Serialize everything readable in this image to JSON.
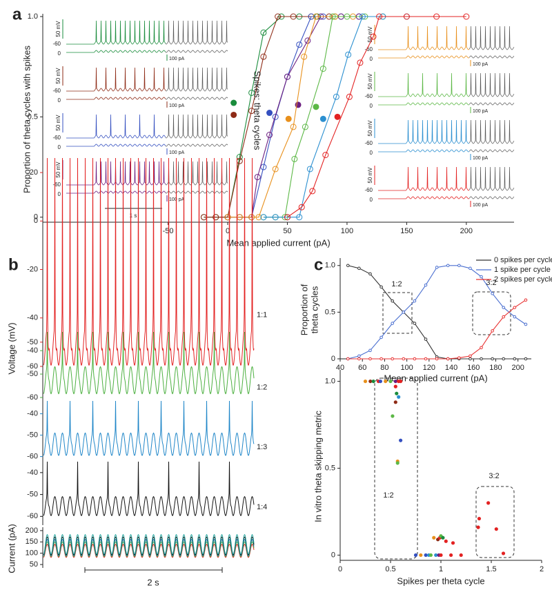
{
  "chart_data": [
    {
      "panel": "a",
      "type": "line",
      "xlabel": "Mean applied current (pA)",
      "ylabel": "Proportion of theta cycles with spikes",
      "xlim": [
        -155,
        240
      ],
      "ylim": [
        -0.025,
        1.0
      ],
      "xticks": [
        -50,
        0,
        50,
        100,
        150,
        200
      ],
      "yticks": [
        0,
        0.5,
        {
          "value": 1,
          "label": "1.0"
        }
      ],
      "series": [
        {
          "color": "#1a8c3c",
          "x": [
            -20,
            -10,
            0,
            10,
            20,
            30,
            45,
            60,
            75,
            90
          ],
          "values": [
            0,
            0,
            0,
            0.3,
            0.62,
            0.92,
            1,
            1,
            1,
            1
          ],
          "mid_x": 5,
          "mid_y": 0.57
        },
        {
          "color": "#8e2b16",
          "x": [
            -20,
            -10,
            0,
            10,
            20,
            30,
            42,
            55,
            70,
            85
          ],
          "values": [
            0,
            0,
            0,
            0.28,
            0.53,
            0.8,
            1,
            1,
            1,
            1
          ],
          "mid_x": 5,
          "mid_y": 0.51
        },
        {
          "color": "#3550c0",
          "x": [
            10,
            20,
            30,
            40,
            50,
            60,
            70,
            80,
            95,
            110
          ],
          "values": [
            0,
            0,
            0.25,
            0.5,
            0.7,
            0.86,
            1,
            1,
            1,
            1
          ],
          "mid_x": 35,
          "mid_y": 0.52
        },
        {
          "color": "#6c1f80",
          "x": [
            0,
            10,
            20,
            25,
            35,
            50,
            67,
            78,
            95,
            110
          ],
          "values": [
            0,
            0,
            0,
            0.2,
            0.41,
            0.7,
            0.88,
            1,
            1,
            1
          ],
          "mid_x": 59,
          "mid_y": 0.56
        },
        {
          "color": "#e8901c",
          "x": [
            0,
            10,
            20,
            26,
            40,
            55,
            64,
            74,
            90,
            105
          ],
          "values": [
            0,
            0,
            0,
            0,
            0.24,
            0.45,
            0.8,
            1,
            1,
            1
          ],
          "mid_x": 51,
          "mid_y": 0.49
        },
        {
          "color": "#5cb846",
          "x": [
            30,
            40,
            48,
            56,
            65,
            80,
            88,
            100,
            115,
            130
          ],
          "values": [
            0,
            0,
            0,
            0.29,
            0.45,
            0.74,
            1,
            1,
            1,
            1
          ],
          "mid_x": 74,
          "mid_y": 0.55
        },
        {
          "color": "#2b8fd0",
          "x": [
            30,
            40,
            50,
            60,
            69,
            91,
            101,
            113,
            130,
            150
          ],
          "values": [
            0,
            0,
            0,
            0,
            0.24,
            0.6,
            0.81,
            1,
            1,
            1
          ],
          "mid_x": 80,
          "mid_y": 0.49
        },
        {
          "color": "#e32222",
          "x": [
            50,
            62,
            71,
            82,
            102,
            111,
            122,
            127,
            150,
            175,
            200
          ],
          "values": [
            0,
            0.05,
            0.13,
            0.31,
            0.6,
            0.77,
            0.9,
            1,
            1,
            1,
            1
          ],
          "mid_x": 92,
          "mid_y": 0.5
        }
      ],
      "insets": [
        {
          "color": "#1a8c3c",
          "amplitude": "50 mV",
          "rest": "-60",
          "zero": "0",
          "current": "100 pA"
        },
        {
          "color": "#8e2b16",
          "amplitude": "50 mV",
          "rest": "-60",
          "zero": "0",
          "current": "100 pA"
        },
        {
          "color": "#3550c0",
          "amplitude": "50 mV",
          "rest": "-60",
          "zero": "0",
          "current": "100 pA"
        },
        {
          "color": "#6c1f80",
          "amplitude": "50 mV",
          "rest": "-60",
          "zero": "0",
          "current": "100 pA"
        },
        {
          "color": "#e8901c",
          "amplitude": "50 mV",
          "rest": "-60",
          "zero": "0",
          "current": "100 pA"
        },
        {
          "color": "#5cb846",
          "amplitude": "50 mV",
          "rest": "-60",
          "zero": "0",
          "current": "100 pA"
        },
        {
          "color": "#2b8fd0",
          "amplitude": "50 mV",
          "rest": "-60",
          "zero": "0",
          "current": "100 pA"
        },
        {
          "color": "#e32222",
          "amplitude": "50 mV",
          "rest": "-60",
          "zero": "0",
          "current": "100 pA"
        }
      ],
      "time_scale": "1 s"
    },
    {
      "panel": "b",
      "type": "traces",
      "ylabel": "Voltage (mV)",
      "ratio_title": "Spikes: theta cycles",
      "time_scale": "2 s",
      "traces": [
        {
          "ratio": "1:1",
          "color": "#e32222",
          "ylim": [
            -64,
            26
          ],
          "yticks": [
            20,
            0,
            -20,
            -40,
            -50,
            -60
          ]
        },
        {
          "ratio": "1:2",
          "color": "#4cb040",
          "ylim": [
            -65,
            -32
          ],
          "yticks": [
            -40,
            -50,
            -60
          ]
        },
        {
          "ratio": "1:3",
          "color": "#1f86c8",
          "ylim": [
            -64,
            -34
          ],
          "yticks": [
            -40,
            -50,
            -60
          ]
        },
        {
          "ratio": "1:4",
          "color": "#111111",
          "ylim": [
            -64,
            -35
          ],
          "yticks": [
            -40,
            -50,
            -60
          ]
        }
      ],
      "current": {
        "ylabel": "Current (pA)",
        "ylim": [
          35,
          215
        ],
        "yticks": [
          200,
          150,
          100,
          50
        ],
        "colors": [
          "#e32222",
          "#4cb040",
          "#1f86c8",
          "#111111",
          "#2aa7a0"
        ]
      }
    },
    {
      "panel": "c",
      "type": "line",
      "xlabel": "Mean applied current (pA)",
      "ylabel": [
        "Proportion of",
        "theta cycles"
      ],
      "xlim": [
        40,
        212
      ],
      "ylim": [
        0,
        1.05
      ],
      "xticks": [
        40,
        60,
        80,
        100,
        120,
        140,
        160,
        180,
        200
      ],
      "yticks": [
        0,
        0.5,
        {
          "value": 1,
          "label": "1.0"
        }
      ],
      "x": [
        47,
        57,
        67,
        77,
        87,
        97,
        107,
        117,
        127,
        137,
        147,
        157,
        167,
        177,
        187,
        197,
        207
      ],
      "series": [
        {
          "name": "0 spikes per cycle",
          "color": "#333333",
          "values": [
            1,
            0.97,
            0.91,
            0.77,
            0.62,
            0.5,
            0.38,
            0.21,
            0.02,
            0,
            0,
            0,
            0,
            0,
            0,
            0,
            0
          ]
        },
        {
          "name": "1 spike per cycle",
          "color": "#4a6fd0",
          "values": [
            0,
            0.03,
            0.09,
            0.23,
            0.38,
            0.5,
            0.62,
            0.79,
            0.98,
            1,
            1,
            0.97,
            0.88,
            0.7,
            0.55,
            0.45,
            0.37
          ]
        },
        {
          "name": "2 spikes per cycle",
          "color": "#e83030",
          "values": [
            0,
            0,
            0,
            0,
            0,
            0,
            0,
            0,
            0,
            0,
            0.01,
            0.03,
            0.12,
            0.3,
            0.45,
            0.55,
            0.63
          ]
        }
      ],
      "annotations": [
        "1:2",
        "3:2"
      ]
    },
    {
      "type": "scatter",
      "xlabel": "Spikes per theta cycle",
      "ylabel": "In vitro theta skipping metric",
      "xlim": [
        0,
        2
      ],
      "ylim": [
        -0.03,
        1.05
      ],
      "xticks": [
        0,
        0.5,
        1,
        1.5,
        2
      ],
      "yticks": [
        0,
        0.5,
        {
          "value": 1,
          "label": "1.0"
        }
      ],
      "x": [
        0.25,
        0.3,
        0.33,
        0.38,
        0.4,
        0.45,
        0.5,
        0.55,
        0.58,
        0.6,
        0.55,
        0.56,
        0.55,
        0.58,
        0.52,
        0.6,
        0.57,
        0.57,
        0.75,
        0.8,
        0.85,
        0.88,
        0.9,
        0.95,
        0.98,
        1.0,
        1.1,
        1.2,
        0.93,
        0.97,
        0.99,
        1.0,
        1.02,
        1.05,
        1.12,
        1.37,
        1.38,
        1.47,
        1.55,
        1.62
      ],
      "values": [
        1,
        1,
        1,
        1,
        1,
        1,
        1,
        1,
        1,
        1,
        0.97,
        0.93,
        0.88,
        0.91,
        0.8,
        0.66,
        0.54,
        0.53,
        0,
        0,
        0,
        0,
        0,
        0,
        0,
        0,
        0,
        0,
        0.1,
        0.09,
        0.1,
        0.11,
        0.1,
        0.08,
        0.07,
        0.16,
        0.21,
        0.3,
        0.15,
        0.01
      ],
      "colors": [
        "#e8901c",
        "#8e2b16",
        "#1a8c3c",
        "#e32222",
        "#3550c0",
        "#e8901c",
        "#5cb846",
        "#6c1f80",
        "#e32222",
        "#e32222",
        "#e32222",
        "#1a8c3c",
        "#8e2b16",
        "#2b8fd0",
        "#5cb846",
        "#3550c0",
        "#e8901c",
        "#5cb846",
        "#3550c0",
        "#e8901c",
        "#3550c0",
        "#2b8fd0",
        "#5cb846",
        "#2b8fd0",
        "#6c1f80",
        "#e32222",
        "#e32222",
        "#e32222",
        "#e8901c",
        "#8e2b16",
        "#e32222",
        "#5cb846",
        "#1a8c3c",
        "#e32222",
        "#e32222",
        "#e32222",
        "#e32222",
        "#e32222",
        "#e32222",
        "#e32222"
      ],
      "annotations": [
        "1:2",
        "3:2"
      ]
    }
  ]
}
